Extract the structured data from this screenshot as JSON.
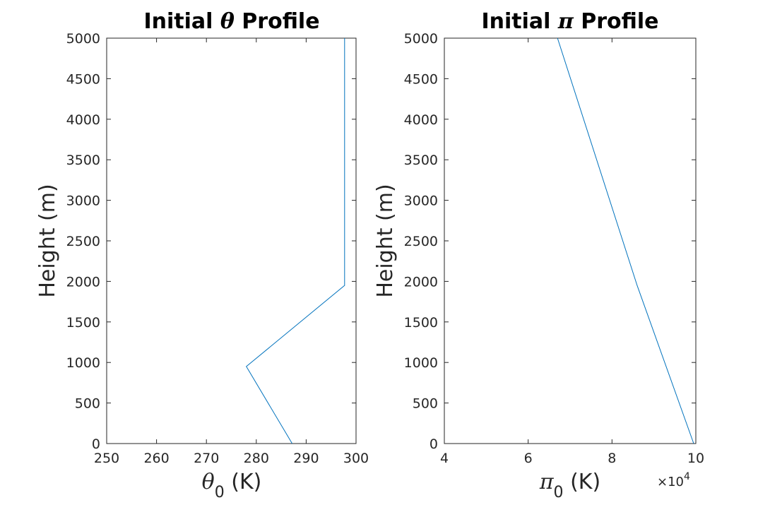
{
  "chart_data": [
    {
      "type": "line",
      "title": {
        "prefix": "Initial ",
        "symbol": "θ",
        "suffix": " Profile"
      },
      "xlabel": {
        "symbol": "θ",
        "subscript": "0",
        "suffix": " (K)"
      },
      "ylabel": "Height (m)",
      "xlim": [
        250,
        300
      ],
      "ylim": [
        0,
        5000
      ],
      "xticks": [
        250,
        260,
        270,
        280,
        290,
        300
      ],
      "yticks": [
        0,
        500,
        1000,
        1500,
        2000,
        2500,
        3000,
        3500,
        4000,
        4500,
        5000
      ],
      "grid": false,
      "series": [
        {
          "color": "#0072bd",
          "x": [
            287.2,
            278.0,
            297.7,
            297.7
          ],
          "y": [
            0,
            950,
            1950,
            5000
          ]
        }
      ]
    },
    {
      "type": "line",
      "title": {
        "prefix": "Initial ",
        "symbol": "π",
        "suffix": " Profile"
      },
      "xlabel": {
        "symbol": "π",
        "subscript": "0",
        "suffix": " (K)"
      },
      "ylabel": "Height (m)",
      "xlim": [
        4,
        10
      ],
      "ylim": [
        0,
        5000
      ],
      "xticks": [
        4,
        6,
        8,
        10
      ],
      "yticks": [
        0,
        500,
        1000,
        1500,
        2000,
        2500,
        3000,
        3500,
        4000,
        4500,
        5000
      ],
      "x_exponent": {
        "base": "×10",
        "power": "4"
      },
      "grid": false,
      "series": [
        {
          "color": "#0072bd",
          "x": [
            9.95,
            8.6,
            6.7
          ],
          "y": [
            0,
            1950,
            5000
          ]
        }
      ]
    }
  ]
}
